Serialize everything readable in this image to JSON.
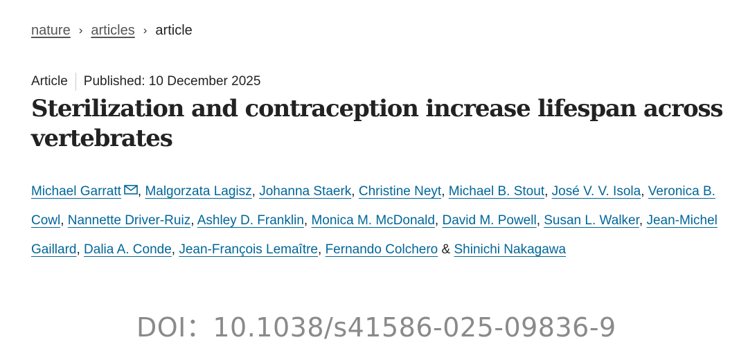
{
  "breadcrumb": {
    "items": [
      "nature",
      "articles"
    ],
    "current": "article",
    "separator": "›"
  },
  "article": {
    "type": "Article",
    "published": "Published: 10 December 2025",
    "title": "Sterilization and contraception increase lifespan across vertebrates"
  },
  "authors": [
    "Michael Garratt",
    "Malgorzata Lagisz",
    "Johanna Staerk",
    "Christine Neyt",
    "Michael B. Stout",
    "José V. V. Isola",
    "Veronica B. Cowl",
    "Nannette Driver-Ruiz",
    "Ashley D. Franklin",
    "Monica M. McDonald",
    "David M. Powell",
    "Susan L. Walker",
    "Jean-Michel Gaillard",
    "Dalia A. Conde",
    "Jean-François Lemaître",
    "Fernando Colchero",
    "Shinichi Nakagawa"
  ],
  "authors_final_joiner": "&",
  "doi": "DOI：10.1038/s41586-025-09836-9",
  "icons": {
    "corresponding_author": "mail-icon"
  },
  "colors": {
    "link": "#006699",
    "title": "#222222",
    "doi": "#8a8a8a"
  }
}
